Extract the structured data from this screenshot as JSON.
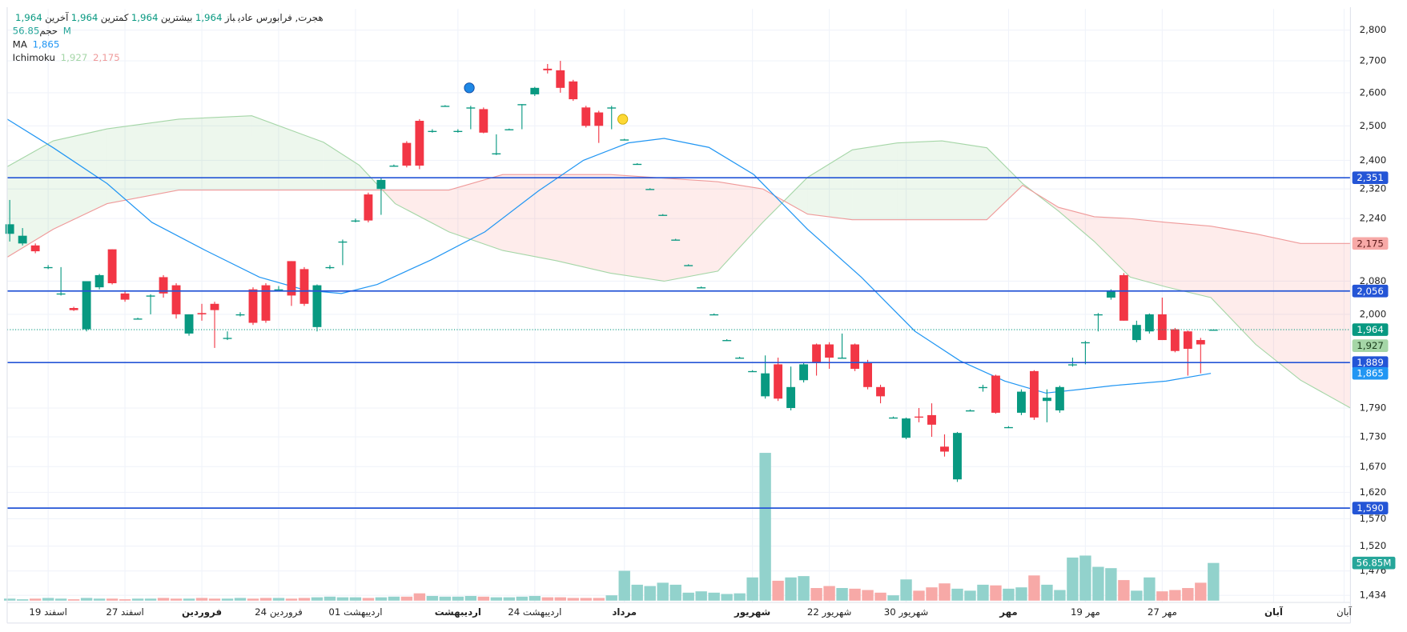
{
  "chart_data": {
    "type": "candlestick",
    "legend": {
      "symbol": "هجرت, فرابورس عادی",
      "items": [
        {
          "label": "باز",
          "value": "1,964"
        },
        {
          "label": "بیشترین",
          "value": "1,964"
        },
        {
          "label": "کمترین",
          "value": "1,964"
        },
        {
          "label": "آخرین",
          "value": "1,964"
        }
      ],
      "value_color": "#089981"
    },
    "xlim": [
      -0.2,
      104.7
    ],
    "xticks": [
      {
        "value": 3,
        "label": "19 اسفند"
      },
      {
        "value": 9,
        "label": "27 اسفند"
      },
      {
        "value": 15,
        "label": "فروردین",
        "bold": true
      },
      {
        "value": 21,
        "label": "24 فروردین"
      },
      {
        "value": 27,
        "label": "01 اردیبهشت"
      },
      {
        "value": 35,
        "label": "اردیبهشت",
        "bold": true
      },
      {
        "value": 41,
        "label": "24 اردیبهشت"
      },
      {
        "value": 48,
        "label": "مرداد",
        "bold": true
      },
      {
        "value": 58,
        "label": "شهریور",
        "bold": true
      },
      {
        "value": 64,
        "label": "22 شهریور"
      },
      {
        "value": 70,
        "label": "30 شهریور"
      },
      {
        "value": 78,
        "label": "مهر",
        "bold": true
      },
      {
        "value": 84,
        "label": "19 مهر"
      },
      {
        "value": 90,
        "label": "27 مهر"
      },
      {
        "value": 98.7,
        "label": "آبان",
        "bold": true
      },
      {
        "value": 104.2,
        "label": "آبان"
      }
    ],
    "ylim": [
      1422,
      2871
    ],
    "log_scale": true,
    "grid": true,
    "yticks": [
      {
        "value": 2800,
        "label": "2,800"
      },
      {
        "value": 2700,
        "label": "2,700"
      },
      {
        "value": 2600,
        "label": "2,600"
      },
      {
        "value": 2500,
        "label": "2,500"
      },
      {
        "value": 2400,
        "label": "2,400"
      },
      {
        "value": 2320,
        "label": "2,320"
      },
      {
        "value": 2240,
        "label": "2,240"
      },
      {
        "value": 2080,
        "label": "2,080"
      },
      {
        "value": 2000,
        "label": "2,000"
      },
      {
        "value": 1790,
        "label": "1,790"
      },
      {
        "value": 1730,
        "label": "1,730"
      },
      {
        "value": 1670,
        "label": "1,670"
      },
      {
        "value": 1620,
        "label": "1,620"
      },
      {
        "value": 1570,
        "label": "1,570"
      },
      {
        "value": 1520,
        "label": "1,520"
      },
      {
        "value": 1476,
        "label": "1,476"
      },
      {
        "value": 1434,
        "label": "1,434"
      }
    ],
    "candles": {
      "up_color": "#089981",
      "down_color": "#f23645",
      "open": [
        2200,
        2175,
        2170,
        2115,
        2050,
        2015,
        1965,
        2065,
        2160,
        2050,
        1990,
        2045,
        2090,
        2070,
        1955,
        2003,
        2025,
        1945,
        2000,
        2060,
        2070,
        2060,
        2130,
        2110,
        1970,
        2115,
        2180,
        2235,
        2305,
        2320,
        2385,
        2450,
        2515,
        2485,
        2560,
        2485,
        2555,
        2550,
        2420,
        2490,
        2565,
        2595,
        2675,
        2670,
        2635,
        2555,
        2540,
        2555,
        2460,
        2390,
        2320,
        2250,
        2185,
        2120,
        2065,
        2000,
        1940,
        1900,
        1870,
        1815,
        1885,
        1790,
        1850,
        1930,
        1930,
        1900,
        1930,
        1890,
        1835,
        1770,
        1728,
        1772,
        1775,
        1710,
        1645,
        1785,
        1835,
        1860,
        1750,
        1780,
        1870,
        1805,
        1785,
        1885,
        1935,
        2000,
        2040,
        2095,
        1940,
        1960,
        2000,
        1965,
        1960,
        1940,
        1964
      ],
      "high": [
        2290,
        2215,
        2175,
        2120,
        2115,
        2018,
        2080,
        2098,
        2160,
        2055,
        1992,
        2048,
        2095,
        2075,
        2000,
        2025,
        2030,
        1960,
        2005,
        2065,
        2075,
        2068,
        2130,
        2115,
        2072,
        2120,
        2185,
        2240,
        2310,
        2350,
        2388,
        2455,
        2520,
        2490,
        2562,
        2490,
        2560,
        2555,
        2475,
        2492,
        2565,
        2618,
        2690,
        2700,
        2640,
        2560,
        2545,
        2560,
        2462,
        2392,
        2322,
        2252,
        2187,
        2122,
        2067,
        2002,
        1942,
        1902,
        1872,
        1905,
        1900,
        1880,
        1888,
        1932,
        1935,
        1955,
        1932,
        1895,
        1840,
        1772,
        1770,
        1790,
        1800,
        1735,
        1740,
        1787,
        1840,
        1862,
        1752,
        1830,
        1872,
        1830,
        1838,
        1900,
        1938,
        2003,
        2060,
        2100,
        1985,
        2002,
        2040,
        1968,
        1962,
        1945,
        1964
      ],
      "low": [
        2180,
        2170,
        2150,
        2110,
        2045,
        2008,
        1960,
        2060,
        2072,
        2030,
        1988,
        2000,
        2040,
        1990,
        1950,
        1985,
        1922,
        1940,
        1995,
        1975,
        1980,
        2055,
        2020,
        2020,
        1960,
        2110,
        2120,
        2230,
        2230,
        2250,
        2382,
        2380,
        2375,
        2480,
        2558,
        2480,
        2490,
        2478,
        2415,
        2488,
        2490,
        2590,
        2660,
        2600,
        2575,
        2495,
        2450,
        2490,
        2458,
        2388,
        2318,
        2248,
        2183,
        2118,
        2063,
        1998,
        1938,
        1898,
        1868,
        1810,
        1805,
        1785,
        1845,
        1860,
        1875,
        1898,
        1870,
        1830,
        1800,
        1768,
        1725,
        1760,
        1730,
        1690,
        1640,
        1783,
        1825,
        1778,
        1748,
        1775,
        1765,
        1760,
        1780,
        1880,
        1885,
        1960,
        2035,
        1985,
        1935,
        1955,
        1940,
        1912,
        1860,
        1865,
        1964
      ],
      "close": [
        2225,
        2195,
        2155,
        2115,
        2050,
        2010,
        2080,
        2095,
        2075,
        2035,
        1990,
        2045,
        2050,
        2000,
        2000,
        2000,
        2010,
        1945,
        2000,
        1980,
        1985,
        2060,
        2045,
        2025,
        2070,
        2115,
        2180,
        2235,
        2235,
        2345,
        2385,
        2385,
        2385,
        2485,
        2560,
        2485,
        2555,
        2480,
        2420,
        2490,
        2565,
        2615,
        2670,
        2615,
        2580,
        2500,
        2500,
        2555,
        2460,
        2390,
        2320,
        2250,
        2185,
        2120,
        2065,
        2000,
        1940,
        1900,
        1870,
        1865,
        1810,
        1835,
        1885,
        1890,
        1900,
        1900,
        1875,
        1835,
        1815,
        1770,
        1768,
        1770,
        1755,
        1700,
        1738,
        1785,
        1835,
        1780,
        1750,
        1825,
        1770,
        1812,
        1835,
        1885,
        1935,
        2000,
        2055,
        1985,
        1975,
        2000,
        1940,
        1915,
        1920,
        1930,
        1964
      ]
    },
    "volume": {
      "name": "حجم",
      "value_label": "56.85M",
      "ylim": [
        0,
        230
      ],
      "up_color": "#92d2cc",
      "down_color": "#f7a9a7",
      "label_color": "#26a69a",
      "values": [
        3,
        2,
        3,
        4,
        3,
        2,
        4,
        3,
        3,
        2,
        3,
        3,
        4,
        3,
        3,
        4,
        3,
        3,
        4,
        3,
        4,
        4,
        3,
        4,
        5,
        6,
        5,
        5,
        4,
        5,
        6,
        6,
        11,
        7,
        6,
        6,
        7,
        6,
        5,
        5,
        6,
        7,
        5,
        5,
        4,
        4,
        4,
        8,
        45,
        24,
        22,
        27,
        24,
        12,
        14,
        12,
        10,
        11,
        35,
        223,
        30,
        35,
        37,
        19,
        22,
        19,
        18,
        16,
        12,
        8,
        32,
        15,
        20,
        26,
        18,
        15,
        24,
        23,
        18,
        20,
        38,
        24,
        16,
        65,
        68,
        51,
        49,
        31,
        15,
        35,
        14,
        16,
        19,
        27,
        56.85
      ]
    },
    "ma": {
      "name": "MA",
      "legend_value": "1,865",
      "color": "#2196f3",
      "x": [
        -0.2,
        3.4,
        7.6,
        11.1,
        15.3,
        19.5,
        23.1,
        25.9,
        28.7,
        32.9,
        37.1,
        41.3,
        44.8,
        48.3,
        51.1,
        54.6,
        58.1,
        62.3,
        66.5,
        70.7,
        74.2,
        77.7,
        80.9,
        83.3,
        86.1,
        90.3,
        93.8
      ],
      "values": [
        2520,
        2436,
        2335,
        2230,
        2157,
        2090,
        2058,
        2050,
        2072,
        2133,
        2205,
        2315,
        2400,
        2450,
        2463,
        2437,
        2360,
        2212,
        2090,
        1960,
        1893,
        1848,
        1822,
        1829,
        1838,
        1848,
        1865
      ]
    },
    "ichimoku": {
      "name": "Ichimoku",
      "legend_values": [
        "1,927",
        "2,175"
      ],
      "color_a": "#a5d6a7",
      "color_b": "#ef9a9a",
      "fill_a": "rgba(76,175,80,0.1)",
      "fill_b": "rgba(244,67,54,0.1)",
      "x": [
        -0.2,
        3.4,
        7.6,
        13.2,
        18.9,
        24.5,
        27.3,
        30.1,
        34.3,
        38.5,
        42.7,
        46.9,
        51.1,
        55.3,
        58.8,
        62.3,
        65.8,
        69.3,
        72.8,
        76.3,
        79.1,
        81.9,
        84.7,
        87.5,
        90.3,
        93.8,
        97.3,
        100.8,
        104.7
      ],
      "span_a": [
        2382,
        2456,
        2491,
        2520,
        2530,
        2452,
        2386,
        2280,
        2205,
        2157,
        2131,
        2100,
        2080,
        2105,
        2230,
        2352,
        2430,
        2450,
        2456,
        2436,
        2335,
        2260,
        2180,
        2090,
        2066,
        2040,
        1930,
        1850,
        1790
      ],
      "span_b": [
        2140,
        2212,
        2280,
        2317,
        2317,
        2317,
        2317,
        2317,
        2317,
        2360,
        2360,
        2360,
        2350,
        2340,
        2320,
        2252,
        2237,
        2237,
        2237,
        2237,
        2330,
        2270,
        2245,
        2240,
        2230,
        2220,
        2200,
        2175,
        2175
      ]
    },
    "price_lines": [
      {
        "value": 2351,
        "label": "2,351",
        "color": "#2455d6",
        "text_color": "#ffffff",
        "line": "solid"
      },
      {
        "value": 2175,
        "label": "2,175",
        "color": "#f7a9a7",
        "text_color": "#5d1a1a",
        "line": "none"
      },
      {
        "value": 2056,
        "label": "2,056",
        "color": "#2455d6",
        "text_color": "#ffffff",
        "line": "solid"
      },
      {
        "value": 1964,
        "label": "1,964",
        "color": "#089981",
        "text_color": "#ffffff",
        "line": "dotted"
      },
      {
        "value": 1927,
        "label": "1,927",
        "color": "#a5d6a7",
        "text_color": "#1b3d1c",
        "line": "none"
      },
      {
        "value": 1889,
        "label": "1,889",
        "color": "#2455d6",
        "text_color": "#ffffff",
        "line": "solid"
      },
      {
        "value": 1865,
        "label": "1,865",
        "color": "#2196f3",
        "text_color": "#ffffff",
        "line": "none"
      },
      {
        "value": 1590,
        "label": "1,590",
        "color": "#2455d6",
        "text_color": "#ffffff",
        "line": "solid"
      }
    ]
  }
}
